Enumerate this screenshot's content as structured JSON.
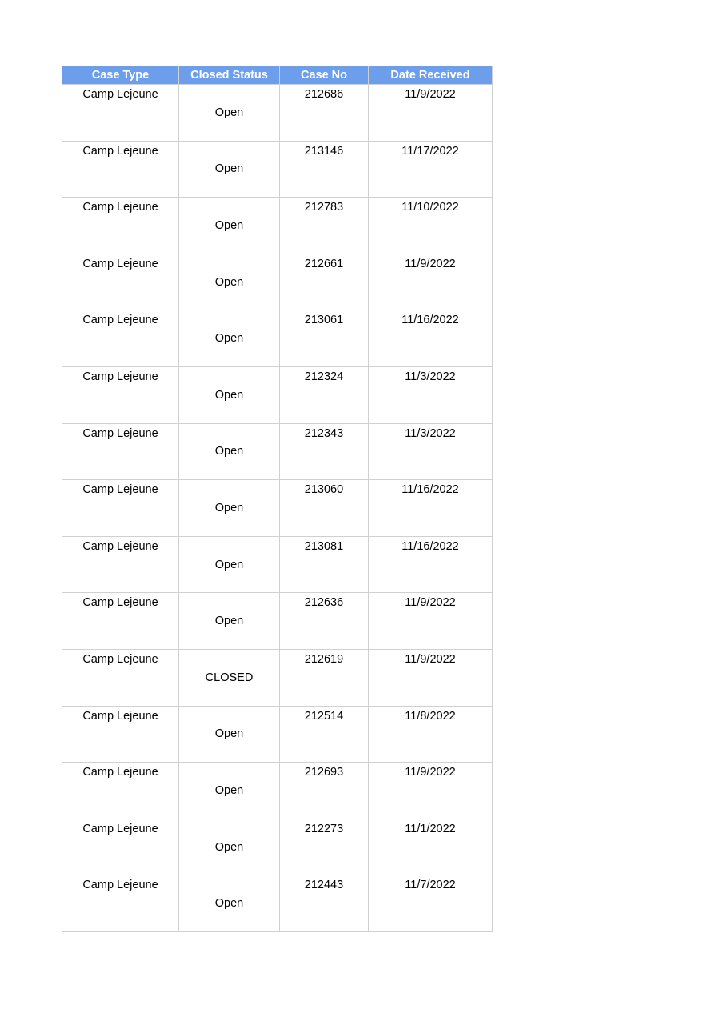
{
  "header_color": "#6d9eeb",
  "columns": [
    "Case Type",
    "Closed Status",
    "Case No",
    "Date Received"
  ],
  "rows": [
    [
      "Camp Lejeune",
      "Open",
      "212686",
      "11/9/2022"
    ],
    [
      "Camp Lejeune",
      "Open",
      "213146",
      "11/17/2022"
    ],
    [
      "Camp Lejeune",
      "Open",
      "212783",
      "11/10/2022"
    ],
    [
      "Camp Lejeune",
      "Open",
      "212661",
      "11/9/2022"
    ],
    [
      "Camp Lejeune",
      "Open",
      "213061",
      "11/16/2022"
    ],
    [
      "Camp Lejeune",
      "Open",
      "212324",
      "11/3/2022"
    ],
    [
      "Camp Lejeune",
      "Open",
      "212343",
      "11/3/2022"
    ],
    [
      "Camp Lejeune",
      "Open",
      "213060",
      "11/16/2022"
    ],
    [
      "Camp Lejeune",
      "Open",
      "213081",
      "11/16/2022"
    ],
    [
      "Camp Lejeune",
      "Open",
      "212636",
      "11/9/2022"
    ],
    [
      "Camp Lejeune",
      "CLOSED",
      "212619",
      "11/9/2022"
    ],
    [
      "Camp Lejeune",
      "Open",
      "212514",
      "11/8/2022"
    ],
    [
      "Camp Lejeune",
      "Open",
      "212693",
      "11/9/2022"
    ],
    [
      "Camp Lejeune",
      "Open",
      "212273",
      "11/1/2022"
    ],
    [
      "Camp Lejeune",
      "Open",
      "212443",
      "11/7/2022"
    ]
  ]
}
